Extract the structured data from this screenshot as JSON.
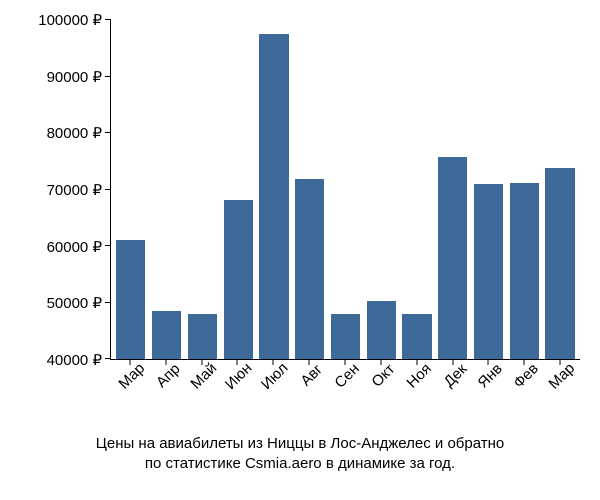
{
  "chart": {
    "type": "bar",
    "background_color": "#ffffff",
    "bar_color": "#3d6a98",
    "axis_color": "#000000",
    "text_color": "#000000",
    "tick_fontsize": 15,
    "xlabel_fontsize": 15,
    "xlabel_rotation_deg": -45,
    "bar_width_ratio": 0.92,
    "ylim": [
      40000,
      100000
    ],
    "ytick_step": 10000,
    "currency": "₽",
    "categories": [
      "Мар",
      "Апр",
      "Май",
      "Июн",
      "Июл",
      "Авг",
      "Сен",
      "Окт",
      "Ноя",
      "Дек",
      "Янв",
      "Фев",
      "Мар"
    ],
    "values": [
      61000,
      48500,
      48000,
      68200,
      97500,
      71800,
      48000,
      50300,
      48000,
      75800,
      71000,
      71200,
      73800
    ]
  },
  "yticks": [
    {
      "v": 40000,
      "label": "40000 ₽"
    },
    {
      "v": 50000,
      "label": "50000 ₽"
    },
    {
      "v": 60000,
      "label": "60000 ₽"
    },
    {
      "v": 70000,
      "label": "70000 ₽"
    },
    {
      "v": 80000,
      "label": "80000 ₽"
    },
    {
      "v": 90000,
      "label": "90000 ₽"
    },
    {
      "v": 100000,
      "label": "100000 ₽"
    }
  ],
  "caption": {
    "line1": "Цены на авиабилеты из Ниццы в Лос-Анджелес и обратно",
    "line2": "по статистике Csmia.aero в динамике за год.",
    "fontsize": 15
  }
}
